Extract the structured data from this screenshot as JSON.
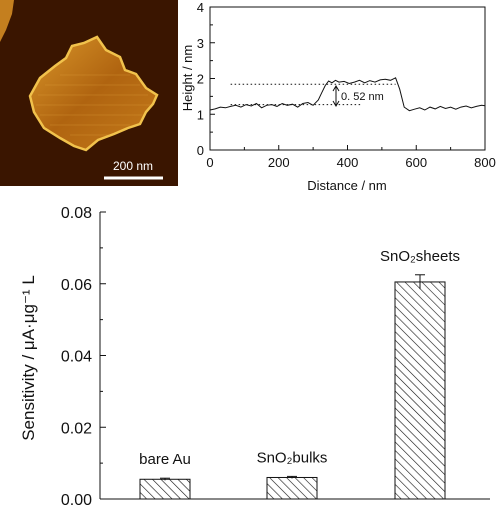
{
  "afm_image": {
    "scale_bar_label": "200 nm",
    "colors": {
      "background": "#3a1500",
      "flake": "#b56a10",
      "highlight": "#f1c24c",
      "scale_bar": "#ffffff"
    }
  },
  "chart_data": [
    {
      "type": "line",
      "xlabel": "Distance / nm",
      "ylabel": "Height / nm",
      "xlim": [
        0,
        800
      ],
      "ylim": [
        0,
        4
      ],
      "x_ticks": [
        "0",
        "200",
        "400",
        "600",
        "800"
      ],
      "y_ticks": [
        "0",
        "1",
        "2",
        "3",
        "4"
      ],
      "annotation": "0. 52 nm",
      "reference_lines": [
        {
          "y": 1.84,
          "x_range": [
            60,
            540
          ]
        },
        {
          "y": 1.27,
          "x_range": [
            60,
            440
          ]
        }
      ],
      "series": [
        {
          "x": [
            0,
            15,
            30,
            45,
            60,
            75,
            90,
            105,
            120,
            135,
            150,
            165,
            180,
            195,
            210,
            225,
            240,
            255,
            270,
            285,
            300,
            315,
            325,
            335,
            345,
            355,
            365,
            375,
            390,
            405,
            420,
            435,
            450,
            465,
            480,
            495,
            510,
            525,
            540,
            552,
            565,
            580,
            595,
            610,
            625,
            640,
            655,
            670,
            685,
            700,
            715,
            730,
            745,
            760,
            775,
            790,
            800
          ],
          "y": [
            1.12,
            1.15,
            1.2,
            1.18,
            1.22,
            1.25,
            1.2,
            1.27,
            1.23,
            1.3,
            1.18,
            1.25,
            1.27,
            1.22,
            1.3,
            1.25,
            1.28,
            1.2,
            1.3,
            1.33,
            1.25,
            1.4,
            1.6,
            1.8,
            1.93,
            1.88,
            1.95,
            1.9,
            1.92,
            1.86,
            1.9,
            1.95,
            1.88,
            1.94,
            1.9,
            1.96,
            1.98,
            1.95,
            2.02,
            1.7,
            1.2,
            1.1,
            1.14,
            1.18,
            1.12,
            1.2,
            1.15,
            1.22,
            1.16,
            1.2,
            1.14,
            1.2,
            1.23,
            1.18,
            1.22,
            1.25,
            1.24
          ]
        }
      ]
    },
    {
      "type": "bar",
      "ylabel": "Sensitivity / μA·μg⁻¹ L",
      "ylim": [
        0,
        0.08
      ],
      "y_ticks": [
        "0.00",
        "0.02",
        "0.04",
        "0.06",
        "0.08"
      ],
      "categories": [
        "bare Au",
        "SnO₂bulks",
        "SnO₂sheets"
      ],
      "values": [
        0.0055,
        0.006,
        0.0605
      ],
      "errors": [
        0.0003,
        0.0003,
        0.002
      ],
      "fill_pattern": "diagonal hatching"
    }
  ]
}
